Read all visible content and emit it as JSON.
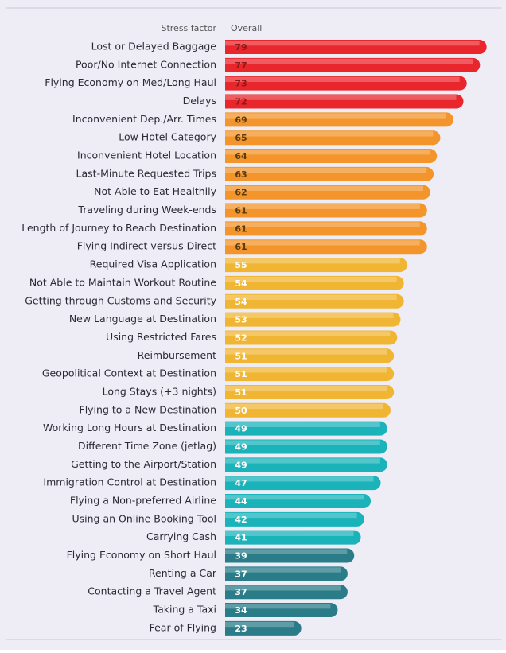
{
  "chart_data": {
    "type": "bar",
    "category_header": "Stress factor",
    "value_header": "Overall",
    "categories": [
      "Lost or Delayed Baggage",
      "Poor/No Internet Connection",
      "Flying Economy on Med/Long Haul",
      "Delays",
      "Inconvenient Dep./Arr. Times",
      "Low Hotel Category",
      "Inconvenient Hotel Location",
      "Last-Minute Requested Trips",
      "Not Able to Eat Healthily",
      "Traveling during Week-ends",
      "Length of Journey to Reach Destination",
      "Flying Indirect versus Direct",
      "Required Visa Application",
      "Not Able to Maintain Workout Routine",
      "Getting through Customs and Security",
      "New Language at Destination",
      "Using Restricted Fares",
      "Reimbursement",
      "Geopolitical Context at Destination",
      "Long Stays (+3 nights)",
      "Flying to a New Destination",
      "Working Long Hours at Destination",
      "Different Time Zone (jetlag)",
      "Getting to the Airport/Station",
      "Immigration Control at Destination",
      "Flying a Non-preferred Airline",
      "Using an Online Booking Tool",
      "Carrying Cash",
      "Flying Economy on Short Haul",
      "Renting a Car",
      "Contacting a Travel Agent",
      "Taking a Taxi",
      "Fear of Flying"
    ],
    "values": [
      79,
      77,
      73,
      72,
      69,
      65,
      64,
      63,
      62,
      61,
      61,
      61,
      55,
      54,
      54,
      53,
      52,
      51,
      51,
      51,
      50,
      49,
      49,
      49,
      47,
      44,
      42,
      41,
      39,
      37,
      37,
      34,
      23
    ],
    "colors": [
      "#e8262c",
      "#e8262c",
      "#e8262c",
      "#e8262c",
      "#f3952a",
      "#f3952a",
      "#f3952a",
      "#f3952a",
      "#f3952a",
      "#f3952a",
      "#f3952a",
      "#f3952a",
      "#f0b633",
      "#f0b633",
      "#f0b633",
      "#f0b633",
      "#f0b633",
      "#f0b633",
      "#f0b633",
      "#f0b633",
      "#f0b633",
      "#1ab3ba",
      "#1ab3ba",
      "#1ab3ba",
      "#1ab3ba",
      "#1ab3ba",
      "#1ab3ba",
      "#1ab3ba",
      "#2a7c88",
      "#2a7c88",
      "#2a7c88",
      "#2a7c88",
      "#2a7c88"
    ],
    "value_label_colors": [
      "#8a1a1a",
      "#8a1a1a",
      "#8a1a1a",
      "#8a1a1a",
      "#5a3a10",
      "#5a3a10",
      "#5a3a10",
      "#5a3a10",
      "#5a3a10",
      "#5a3a10",
      "#5a3a10",
      "#5a3a10",
      "#ffffff",
      "#ffffff",
      "#ffffff",
      "#ffffff",
      "#ffffff",
      "#ffffff",
      "#ffffff",
      "#ffffff",
      "#ffffff",
      "#ffffff",
      "#ffffff",
      "#ffffff",
      "#ffffff",
      "#ffffff",
      "#ffffff",
      "#ffffff",
      "#ffffff",
      "#ffffff",
      "#ffffff",
      "#ffffff",
      "#ffffff"
    ]
  }
}
